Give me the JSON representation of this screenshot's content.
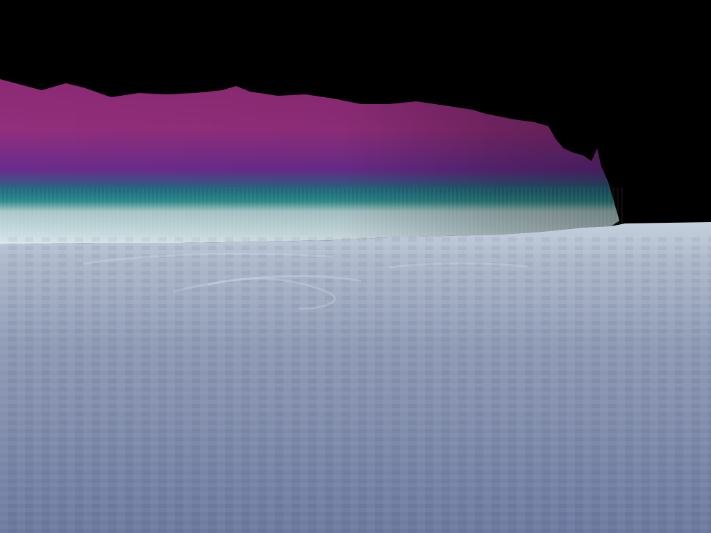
{
  "scene": {
    "colors": {
      "sky": "#000000",
      "ridge_top": "#8a2a78",
      "ridge_mid": "#7a2c8a",
      "ridge_band": "#1f7f86",
      "ridge_base": "#c9dde4",
      "plain_far": "#b7c3d3",
      "plain_near": "#6f7ba0"
    },
    "icons": [
      "terrain-ridge",
      "terrain-plain"
    ]
  }
}
